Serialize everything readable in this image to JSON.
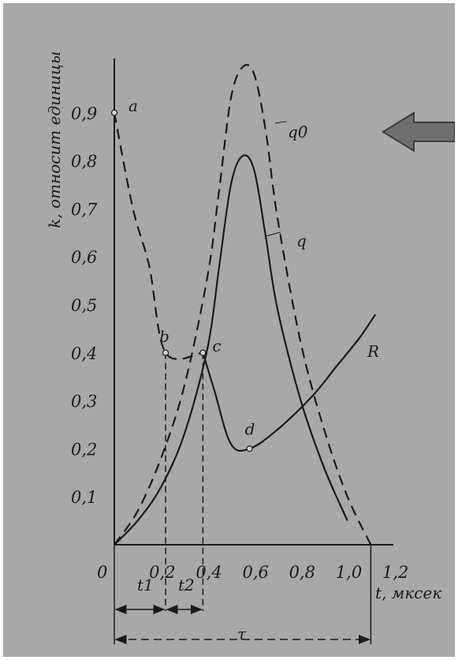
{
  "chart_data": {
    "type": "line",
    "ylabel": "k, относит единицы",
    "xlabel": "t, мксек",
    "xlim": [
      0,
      1.2
    ],
    "ylim": [
      0,
      1.0
    ],
    "x_ticks": [
      "0",
      "0,2",
      "0,4",
      "0,6",
      "0,8",
      "1,0",
      "1,2"
    ],
    "y_ticks": [
      "0,1",
      "0,2",
      "0,3",
      "0,4",
      "0,5",
      "0,6",
      "0,7",
      "0,8",
      "0,9"
    ],
    "series": [
      {
        "name": "q0",
        "style": "dashed",
        "points": [
          [
            0,
            0
          ],
          [
            0.1,
            0.07
          ],
          [
            0.2,
            0.18
          ],
          [
            0.3,
            0.33
          ],
          [
            0.4,
            0.56
          ],
          [
            0.45,
            0.74
          ],
          [
            0.5,
            0.93
          ],
          [
            0.55,
            0.995
          ],
          [
            0.6,
            0.98
          ],
          [
            0.65,
            0.86
          ],
          [
            0.7,
            0.68
          ],
          [
            0.8,
            0.42
          ],
          [
            0.9,
            0.24
          ],
          [
            1.0,
            0.1
          ],
          [
            1.1,
            0
          ]
        ]
      },
      {
        "name": "q",
        "style": "solid",
        "points": [
          [
            0,
            0
          ],
          [
            0.1,
            0.05
          ],
          [
            0.2,
            0.12
          ],
          [
            0.3,
            0.23
          ],
          [
            0.4,
            0.41
          ],
          [
            0.45,
            0.58
          ],
          [
            0.5,
            0.75
          ],
          [
            0.55,
            0.81
          ],
          [
            0.6,
            0.78
          ],
          [
            0.65,
            0.64
          ],
          [
            0.7,
            0.49
          ],
          [
            0.8,
            0.3
          ],
          [
            0.9,
            0.16
          ],
          [
            1.0,
            0.05
          ]
        ]
      },
      {
        "name": "R",
        "style": "mixed",
        "points": [
          [
            0,
            0.9
          ],
          [
            0.08,
            0.7
          ],
          [
            0.15,
            0.58
          ],
          [
            0.22,
            0.4
          ],
          [
            0.38,
            0.4
          ],
          [
            0.43,
            0.32
          ],
          [
            0.5,
            0.21
          ],
          [
            0.58,
            0.2
          ],
          [
            0.7,
            0.24
          ],
          [
            0.85,
            0.31
          ],
          [
            0.95,
            0.37
          ],
          [
            1.05,
            0.43
          ],
          [
            1.12,
            0.48
          ]
        ]
      }
    ],
    "point_labels": [
      {
        "text": "a",
        "x": 0,
        "y": 0.9
      },
      {
        "text": "b",
        "x": 0.22,
        "y": 0.4
      },
      {
        "text": "c",
        "x": 0.38,
        "y": 0.4
      },
      {
        "text": "d",
        "x": 0.58,
        "y": 0.2
      }
    ],
    "series_labels": [
      "q0",
      "q",
      "R"
    ],
    "markers_x": {
      "t1_start": 0,
      "t1_end": 0.22,
      "t2_end": 0.38,
      "tau_end": 1.1
    },
    "annotations": {
      "t1": "t1",
      "t2": "t2",
      "tau": "τ"
    },
    "grid": false,
    "arrow_color": "#6f6f6f"
  }
}
